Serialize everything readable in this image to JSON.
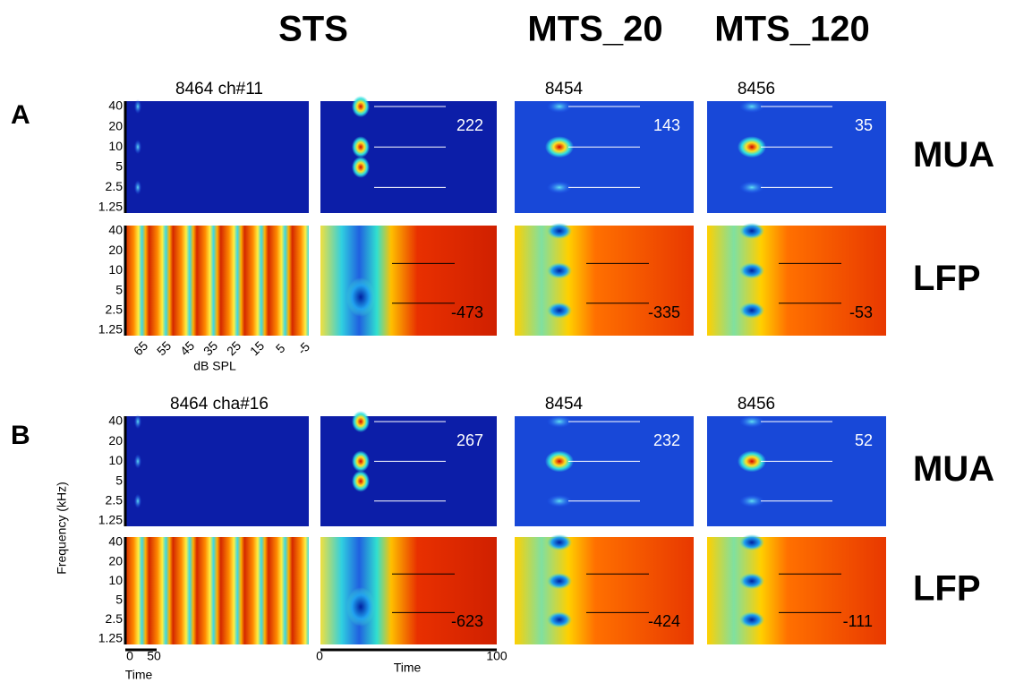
{
  "columns": [
    "STS",
    "MTS_20",
    "MTS_120"
  ],
  "y_axis": "Frequency (kHz)",
  "frequency_ticks": [
    40,
    20,
    10,
    5,
    2.5,
    1.25
  ],
  "level_ticks": [
    65,
    55,
    45,
    35,
    25,
    15,
    5,
    -5
  ],
  "level_axis": "dB SPL",
  "time_axis": {
    "label": "Time",
    "left_ticks": [
      0,
      50
    ],
    "right_ticks": [
      0,
      100
    ]
  },
  "sections": [
    {
      "label": "A",
      "titles": [
        "8464 ch#11",
        "8454",
        "8456"
      ],
      "rows": [
        {
          "signal": "MUA",
          "values": [
            222,
            143,
            35
          ]
        },
        {
          "signal": "LFP",
          "values": [
            -473,
            -335,
            -53
          ]
        }
      ]
    },
    {
      "label": "B",
      "titles": [
        "8464 cha#16",
        "8454",
        "8456"
      ],
      "rows": [
        {
          "signal": "MUA",
          "values": [
            267,
            232,
            52
          ]
        },
        {
          "signal": "LFP",
          "values": [
            -623,
            -424,
            -111
          ]
        }
      ]
    }
  ]
}
